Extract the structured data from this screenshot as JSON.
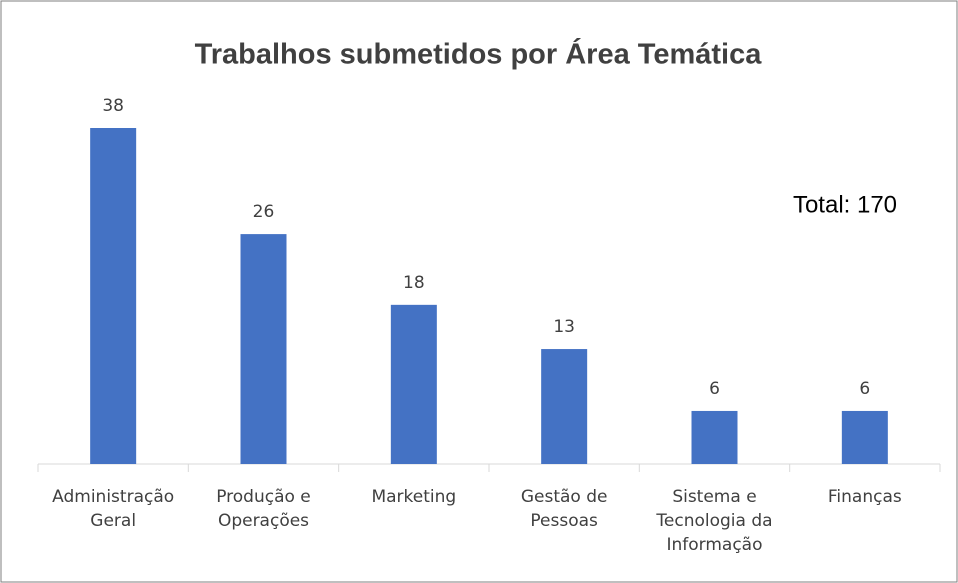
{
  "chart_data": {
    "type": "bar",
    "title": "Trabalhos submetidos por Área Temática",
    "categories": [
      "Administração Geral",
      "Produção e Operações",
      "Marketing",
      "Gestão de Pessoas",
      "Sistema e Tecnologia da Informação",
      "Finanças"
    ],
    "values": [
      38,
      26,
      18,
      13,
      6,
      6
    ],
    "color": "#4472c4",
    "annotation": "Total: 170"
  }
}
